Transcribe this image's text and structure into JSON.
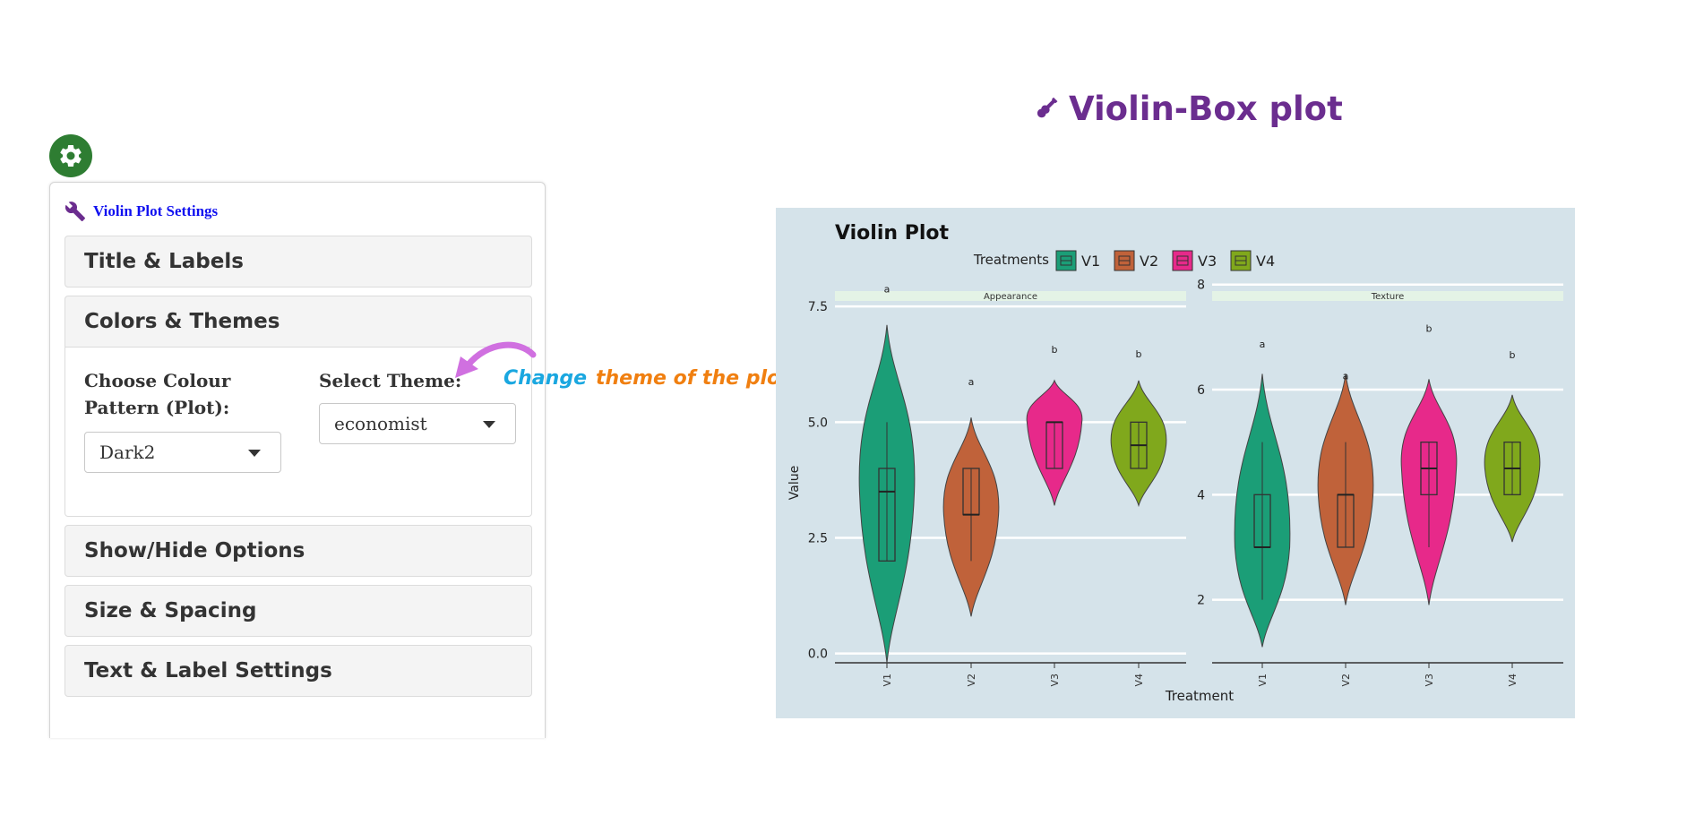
{
  "page": {
    "heading": "Violin-Box plot"
  },
  "sidebar": {
    "title": "Violin Plot Settings",
    "sections": [
      {
        "label": "Title & Labels",
        "expanded": false
      },
      {
        "label": "Colors & Themes",
        "expanded": true
      },
      {
        "label": "Show/Hide Options",
        "expanded": false
      },
      {
        "label": "Size & Spacing",
        "expanded": false
      },
      {
        "label": "Text & Label Settings",
        "expanded": false
      }
    ],
    "colors_themes": {
      "colour_label": "Choose Colour Pattern (Plot):",
      "colour_value": "Dark2",
      "theme_label": "Select Theme:",
      "theme_value": "economist"
    }
  },
  "annotation": {
    "part1": "Change",
    "part2": "theme of the plot"
  },
  "colors": {
    "gear": "#2e7d32",
    "heading": "#6b2d8f",
    "sidebar_title": "#1010f0",
    "annotation_arrow": "#d070e0",
    "chart_bg": "#d5e3ea",
    "V1": "#1b9e77",
    "V2": "#c0623a",
    "V3": "#e7298a",
    "V4": "#80a81c"
  },
  "icons": {
    "gear": "gear-icon",
    "settings": "wrench-icon",
    "heading": "guitar-icon"
  },
  "chart_data": {
    "type": "violin",
    "title": "Violin Plot",
    "legend_title": "Treatments",
    "legend": [
      "V1",
      "V2",
      "V3",
      "V4"
    ],
    "legend_position": "top",
    "xlabel": "Treatment",
    "ylabel": "Value",
    "categories": [
      "V1",
      "V2",
      "V3",
      "V4"
    ],
    "facets": [
      {
        "name": "Appearance",
        "ylim": [
          -0.2,
          8.2
        ],
        "yticks": [
          0.0,
          2.5,
          5.0,
          7.5
        ],
        "ytick_labels": [
          "0.0",
          "2.5",
          "5.0",
          "7.5"
        ],
        "groups": [
          {
            "name": "V1",
            "min": -0.2,
            "max": 7.1,
            "q1": 2,
            "median": 3.5,
            "q3": 4,
            "whisker_low": 2,
            "whisker_high": 5,
            "letter": "a",
            "letter_y": 7.8
          },
          {
            "name": "V2",
            "min": 0.8,
            "max": 5.1,
            "q1": 3,
            "median": 3,
            "q3": 4,
            "whisker_low": 2,
            "whisker_high": 4,
            "letter": "a",
            "letter_y": 5.8
          },
          {
            "name": "V3",
            "min": 3.2,
            "max": 5.9,
            "q1": 4,
            "median": 5,
            "q3": 5,
            "whisker_low": 4,
            "whisker_high": 5,
            "letter": "b",
            "letter_y": 6.5
          },
          {
            "name": "V4",
            "min": 3.2,
            "max": 5.9,
            "q1": 4,
            "median": 4.5,
            "q3": 5,
            "whisker_low": 4,
            "whisker_high": 5,
            "letter": "b",
            "letter_y": 6.4
          }
        ]
      },
      {
        "name": "Texture",
        "ylim": [
          0.8,
          8.2
        ],
        "yticks": [
          2,
          4,
          6,
          8
        ],
        "ytick_labels": [
          "2",
          "4",
          "6",
          "8"
        ],
        "groups": [
          {
            "name": "V1",
            "min": 1.1,
            "max": 6.3,
            "q1": 3,
            "median": 3,
            "q3": 4,
            "whisker_low": 2,
            "whisker_high": 5,
            "letter": "a",
            "letter_y": 6.8
          },
          {
            "name": "V2",
            "min": 1.9,
            "max": 6.3,
            "q1": 3,
            "median": 4,
            "q3": 4,
            "whisker_low": 3,
            "whisker_high": 5,
            "letter": "a",
            "letter_y": 6.2
          },
          {
            "name": "V3",
            "min": 1.9,
            "max": 6.2,
            "q1": 4,
            "median": 4.5,
            "q3": 5,
            "whisker_low": 3,
            "whisker_high": 5,
            "letter": "b",
            "letter_y": 7.1
          },
          {
            "name": "V4",
            "min": 3.1,
            "max": 5.9,
            "q1": 4,
            "median": 4.5,
            "q3": 5,
            "whisker_low": 4,
            "whisker_high": 5,
            "letter": "b",
            "letter_y": 6.6
          }
        ]
      }
    ]
  }
}
